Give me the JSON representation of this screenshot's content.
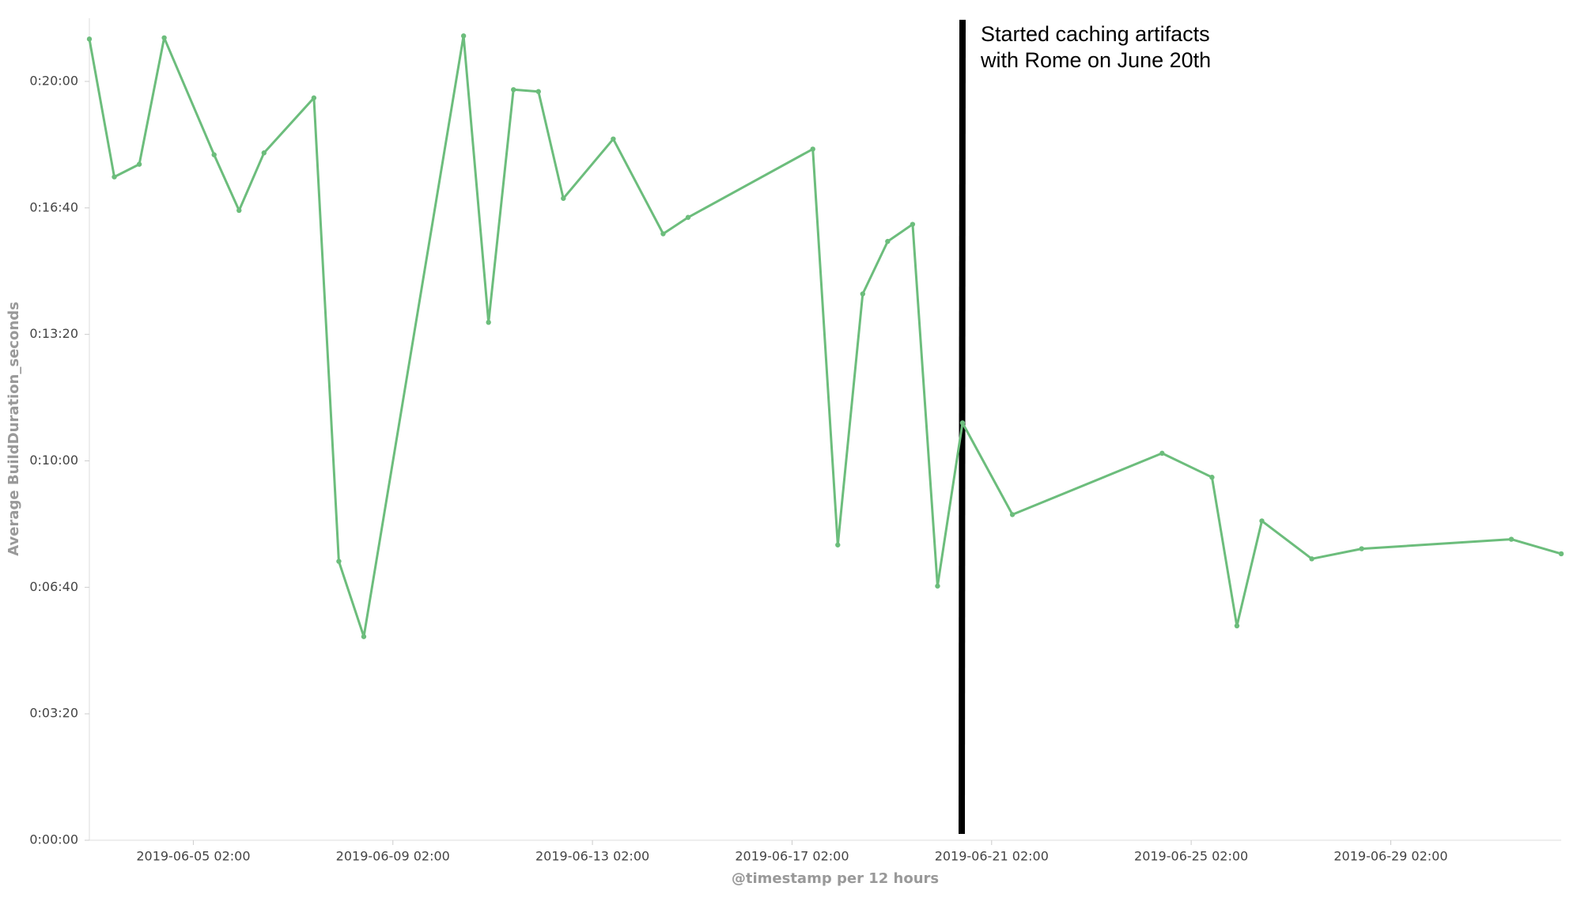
{
  "chart_data": {
    "type": "line",
    "y_label": "Average BuildDuration_seconds",
    "x_label": "@timestamp per 12 hours",
    "annotation": [
      "Started caching artifacts",
      "with Rome on June 20th"
    ],
    "x": [
      "2019-06-03 00:00",
      "2019-06-03 12:00",
      "2019-06-04 00:00",
      "2019-06-04 12:00",
      "2019-06-05 12:00",
      "2019-06-06 00:00",
      "2019-06-06 12:00",
      "2019-06-07 12:00",
      "2019-06-08 00:00",
      "2019-06-08 12:00",
      "2019-06-10 12:00",
      "2019-06-11 00:00",
      "2019-06-11 12:00",
      "2019-06-12 00:00",
      "2019-06-12 12:00",
      "2019-06-13 12:00",
      "2019-06-14 12:00",
      "2019-06-15 00:00",
      "2019-06-17 12:00",
      "2019-06-18 00:00",
      "2019-06-18 12:00",
      "2019-06-19 00:00",
      "2019-06-19 12:00",
      "2019-06-20 00:00",
      "2019-06-20 12:00",
      "2019-06-21 12:00",
      "2019-06-24 12:00",
      "2019-06-25 12:00",
      "2019-06-26 00:00",
      "2019-06-26 12:00",
      "2019-06-27 12:00",
      "2019-06-28 12:00",
      "2019-07-01 12:00",
      "2019-07-02 12:00"
    ],
    "series": [
      {
        "color": "#6cbd7c",
        "values": [
          1267,
          1049,
          1069,
          1269,
          1084,
          996,
          1087,
          1174,
          441,
          322,
          1272,
          819,
          1187,
          1184,
          1015,
          1109,
          959,
          985,
          1093,
          467,
          864,
          947,
          974,
          402,
          660,
          515,
          612,
          574,
          339,
          505,
          445,
          461,
          476,
          453
        ]
      }
    ],
    "xlim": [
      "2019-06-03 00:00",
      "2019-07-02 12:00"
    ],
    "xticks": [
      "2019-06-05 02:00",
      "2019-06-09 02:00",
      "2019-06-13 02:00",
      "2019-06-17 02:00",
      "2019-06-21 02:00",
      "2019-06-25 02:00",
      "2019-06-29 02:00"
    ],
    "ylim": [
      0,
      1300
    ],
    "yticks": [
      {
        "value": 0,
        "label": "0:00:00"
      },
      {
        "value": 200,
        "label": "0:03:20"
      },
      {
        "value": 400,
        "label": "0:06:40"
      },
      {
        "value": 600,
        "label": "0:10:00"
      },
      {
        "value": 800,
        "label": "0:13:20"
      },
      {
        "value": 1000,
        "label": "0:16:40"
      },
      {
        "value": 1200,
        "label": "0:20:00"
      }
    ],
    "grid": false
  }
}
